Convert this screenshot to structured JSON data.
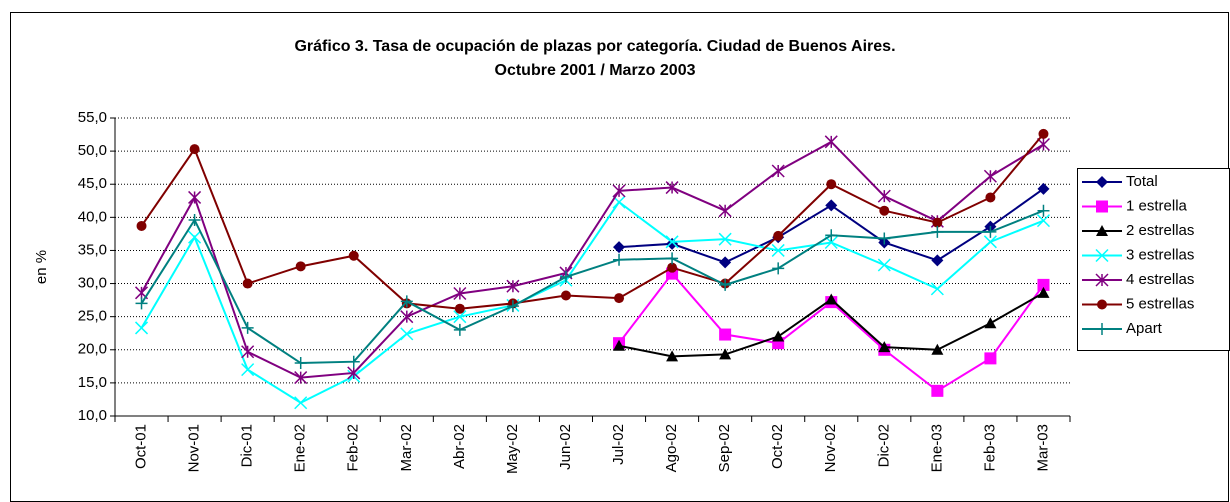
{
  "chart_data": {
    "type": "line",
    "title": "Gráfico 3. Tasa de ocupación de plazas por categoría. Ciudad de Buenos Aires.",
    "subtitle": "Octubre 2001 / Marzo 2003",
    "y_label": "en %",
    "categories": [
      "Oct-01",
      "Nov-01",
      "Dic-01",
      "Ene-02",
      "Feb-02",
      "Mar-02",
      "Abr-02",
      "May-02",
      "Jun-02",
      "Jul-02",
      "Ago-02",
      "Sep-02",
      "Oct-02",
      "Nov-02",
      "Dic-02",
      "Ene-03",
      "Feb-03",
      "Mar-03"
    ],
    "series": [
      {
        "name": "Total",
        "color": "#000080",
        "marker": "diamond",
        "values": [
          null,
          null,
          null,
          null,
          null,
          null,
          null,
          null,
          null,
          35.5,
          36.0,
          33.2,
          37.0,
          41.8,
          36.2,
          33.5,
          38.6,
          44.3
        ]
      },
      {
        "name": "1 estrella",
        "color": "#FF00FF",
        "marker": "square",
        "values": [
          null,
          null,
          null,
          null,
          null,
          null,
          null,
          null,
          null,
          21.0,
          31.5,
          22.3,
          21.0,
          27.2,
          20.0,
          13.8,
          18.7,
          29.8
        ]
      },
      {
        "name": "2 estrellas",
        "color": "#000000",
        "marker": "triangle",
        "values": [
          null,
          null,
          null,
          null,
          null,
          null,
          null,
          null,
          null,
          20.6,
          19.0,
          19.3,
          22.0,
          27.6,
          20.4,
          20.0,
          24.0,
          28.6
        ]
      },
      {
        "name": "3 estrellas",
        "color": "#00FFFF",
        "marker": "x",
        "values": [
          23.3,
          37.0,
          17.0,
          12.0,
          16.0,
          22.4,
          25.0,
          26.7,
          30.5,
          42.3,
          36.3,
          36.7,
          35.0,
          36.2,
          32.8,
          29.2,
          36.3,
          39.5
        ]
      },
      {
        "name": "4 estrellas",
        "color": "#800080",
        "marker": "star",
        "values": [
          28.6,
          43.0,
          19.7,
          15.8,
          16.5,
          25.0,
          28.5,
          29.6,
          31.6,
          44.0,
          44.5,
          41.0,
          47.0,
          51.4,
          43.2,
          39.4,
          46.2,
          51.0
        ]
      },
      {
        "name": "5 estrellas",
        "color": "#800000",
        "marker": "circle",
        "values": [
          38.7,
          50.3,
          30.0,
          32.6,
          34.2,
          27.0,
          26.2,
          27.0,
          28.2,
          27.8,
          32.4,
          30.0,
          37.2,
          45.0,
          41.0,
          39.2,
          43.0,
          52.6
        ]
      },
      {
        "name": "Apart",
        "color": "#008080",
        "marker": "plus",
        "values": [
          27.0,
          39.6,
          23.3,
          18.0,
          18.2,
          27.3,
          23.0,
          26.6,
          31.0,
          33.6,
          33.8,
          29.8,
          32.3,
          37.3,
          36.8,
          37.8,
          37.8,
          41.0
        ]
      }
    ],
    "ylim": [
      10,
      55
    ],
    "yticks": [
      {
        "value": 10,
        "label": "10,0"
      },
      {
        "value": 15,
        "label": "15,0"
      },
      {
        "value": 20,
        "label": "20,0"
      },
      {
        "value": 25,
        "label": "25,0"
      },
      {
        "value": 30,
        "label": "30,0"
      },
      {
        "value": 35,
        "label": "35,0"
      },
      {
        "value": 40,
        "label": "40,0"
      },
      {
        "value": 45,
        "label": "45,0"
      },
      {
        "value": 50,
        "label": "50,0"
      },
      {
        "value": 55,
        "label": "55,0"
      }
    ],
    "grid": true,
    "legend": "right"
  }
}
